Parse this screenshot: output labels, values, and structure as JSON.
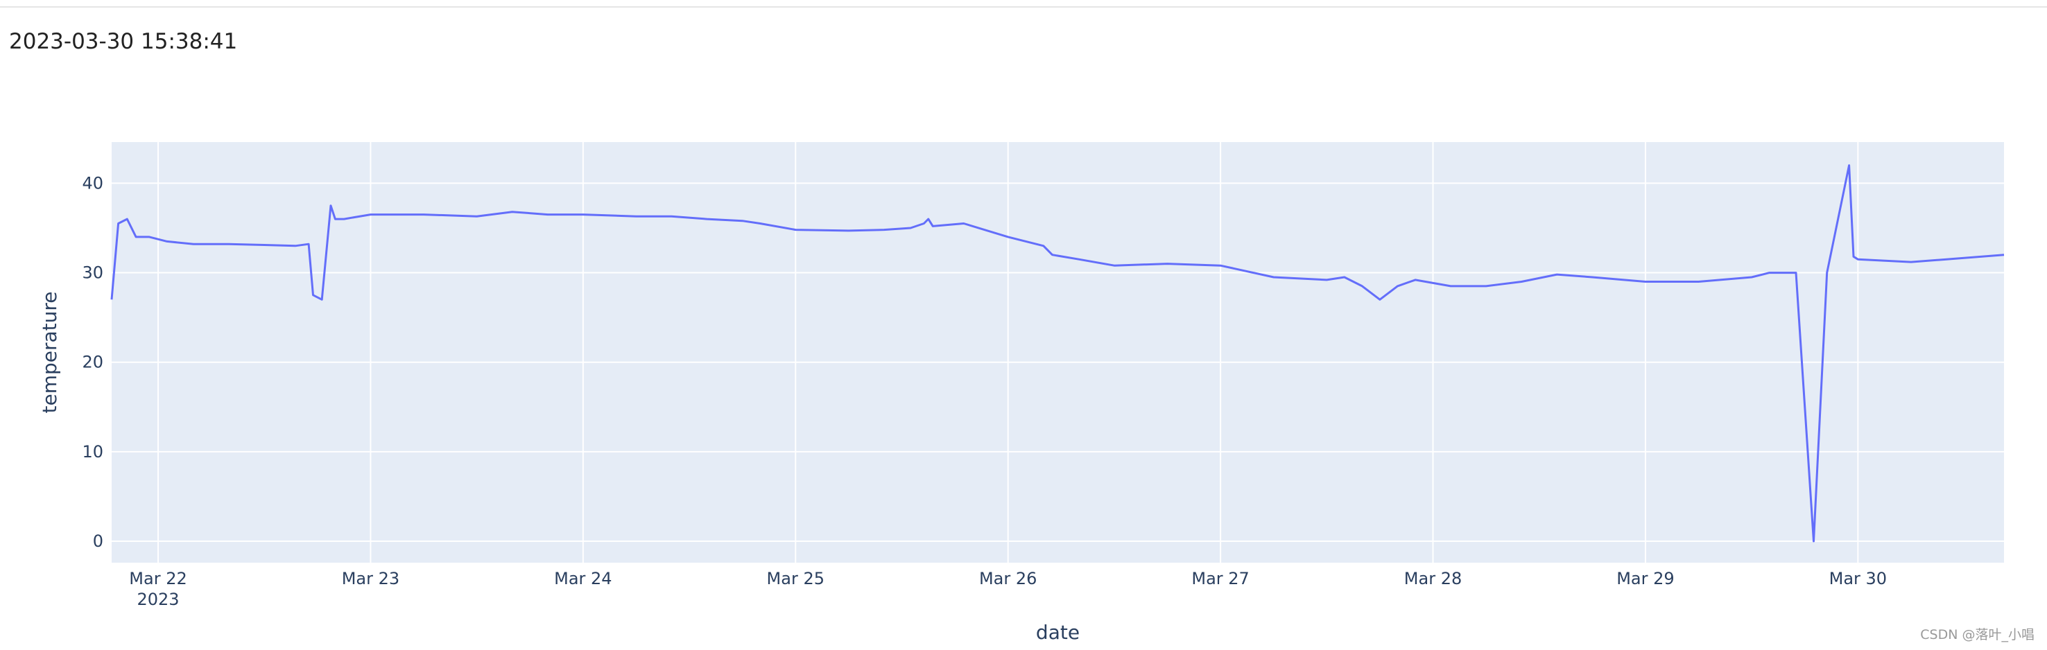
{
  "header": {
    "timestamp": "2023-03-30 15:38:41"
  },
  "watermark": "CSDN @落叶_小唱",
  "colors": {
    "line": "#636efa",
    "plot_bg": "#e5ecf6",
    "grid": "#ffffff",
    "text": "#2a3f5f"
  },
  "chart_data": {
    "type": "line",
    "title": "",
    "xlabel": "date",
    "ylabel": "temperature",
    "x_tick_labels": [
      "Mar 22",
      "Mar 23",
      "Mar 24",
      "Mar 25",
      "Mar 26",
      "Mar 27",
      "Mar 28",
      "Mar 29",
      "Mar 30"
    ],
    "x_tick_sublabel": "2023",
    "y_ticks": [
      0,
      10,
      20,
      30,
      40
    ],
    "xlim": [
      "2023-03-21 18:45",
      "2023-03-30 16:30"
    ],
    "ylim": [
      -2.4,
      44.6
    ],
    "grid": true,
    "series": [
      {
        "name": "",
        "x": [
          "2023-03-21 18:45",
          "2023-03-21 19:30",
          "2023-03-21 20:30",
          "2023-03-21 21:30",
          "2023-03-21 23:00",
          "2023-03-22 01:00",
          "2023-03-22 04:00",
          "2023-03-22 08:00",
          "2023-03-22 12:00",
          "2023-03-22 15:30",
          "2023-03-22 17:00",
          "2023-03-22 17:30",
          "2023-03-22 18:30",
          "2023-03-22 19:30",
          "2023-03-22 20:00",
          "2023-03-22 21:00",
          "2023-03-23 00:00",
          "2023-03-23 06:00",
          "2023-03-23 12:00",
          "2023-03-23 16:00",
          "2023-03-23 20:00",
          "2023-03-24 00:00",
          "2023-03-24 06:00",
          "2023-03-24 10:00",
          "2023-03-24 14:00",
          "2023-03-24 18:00",
          "2023-03-24 20:00",
          "2023-03-25 00:00",
          "2023-03-25 06:00",
          "2023-03-25 10:00",
          "2023-03-25 13:00",
          "2023-03-25 14:30",
          "2023-03-25 15:00",
          "2023-03-25 15:30",
          "2023-03-25 19:00",
          "2023-03-26 00:00",
          "2023-03-26 04:00",
          "2023-03-26 05:00",
          "2023-03-26 08:00",
          "2023-03-26 12:00",
          "2023-03-26 18:00",
          "2023-03-27 00:00",
          "2023-03-27 06:00",
          "2023-03-27 12:00",
          "2023-03-27 14:00",
          "2023-03-27 16:00",
          "2023-03-27 18:00",
          "2023-03-27 20:00",
          "2023-03-27 22:00",
          "2023-03-28 02:00",
          "2023-03-28 06:00",
          "2023-03-28 10:00",
          "2023-03-28 14:00",
          "2023-03-28 18:00",
          "2023-03-29 00:00",
          "2023-03-29 06:00",
          "2023-03-29 12:00",
          "2023-03-29 14:00",
          "2023-03-29 17:00",
          "2023-03-29 19:00",
          "2023-03-29 20:30",
          "2023-03-29 23:00",
          "2023-03-29 23:30",
          "2023-03-30 00:00",
          "2023-03-30 06:00",
          "2023-03-30 10:00",
          "2023-03-30 14:00",
          "2023-03-30 16:30"
        ],
        "values": [
          27,
          35.5,
          36,
          34,
          34,
          33.5,
          33.2,
          33.2,
          33.1,
          33,
          33.2,
          27.5,
          27,
          37.5,
          36,
          36,
          36.5,
          36.5,
          36.3,
          36.8,
          36.5,
          36.5,
          36.3,
          36.3,
          36,
          35.8,
          35.5,
          34.8,
          34.7,
          34.8,
          35,
          35.5,
          36,
          35.2,
          35.5,
          34,
          33,
          32,
          31.5,
          30.8,
          31,
          30.8,
          29.5,
          29.2,
          29.5,
          28.5,
          27,
          28.5,
          29.2,
          28.5,
          28.5,
          29,
          29.8,
          29.5,
          29,
          29,
          29.5,
          30,
          30,
          0,
          30,
          42,
          31.8,
          31.5,
          31.2,
          31.5,
          31.8,
          32
        ]
      }
    ]
  }
}
